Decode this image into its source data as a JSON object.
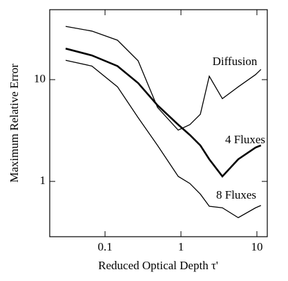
{
  "chart_data": {
    "type": "line",
    "x_label": "Reduced Optical Depth  τ'",
    "y_label": "Maximum Relative Error",
    "x": [
      0.0303,
      0.0672,
      0.146,
      0.273,
      0.491,
      0.92,
      1.31,
      1.8,
      2.36,
      3.51,
      5.68,
      9.6,
      11.3
    ],
    "series": [
      {
        "name": "Diffusion",
        "color": "#000000",
        "values": [
          33.4,
          30,
          24.4,
          15.3,
          5.34,
          3.19,
          3.61,
          4.57,
          10.8,
          6.5,
          8.5,
          11.2,
          12.6
        ]
      },
      {
        "name": "4 Fluxes",
        "color": "#000000",
        "values": [
          20.2,
          17.3,
          13.6,
          9.25,
          5.6,
          3.61,
          2.86,
          2.26,
          1.65,
          1.12,
          1.65,
          2.15,
          2.26
        ]
      },
      {
        "name": "8 Fluxes",
        "color": "#000000",
        "values": [
          15.5,
          13.6,
          8.5,
          4.23,
          2.26,
          1.12,
          0.954,
          0.75,
          0.57,
          0.55,
          0.44,
          0.55,
          0.58
        ]
      }
    ],
    "xscale": "log",
    "yscale": "log",
    "xlim": [
      0.0187,
      13.7
    ],
    "ylim": [
      0.286,
      48.7
    ],
    "xticks": [
      0.1,
      1,
      10
    ],
    "yticks": [
      1,
      10
    ]
  }
}
